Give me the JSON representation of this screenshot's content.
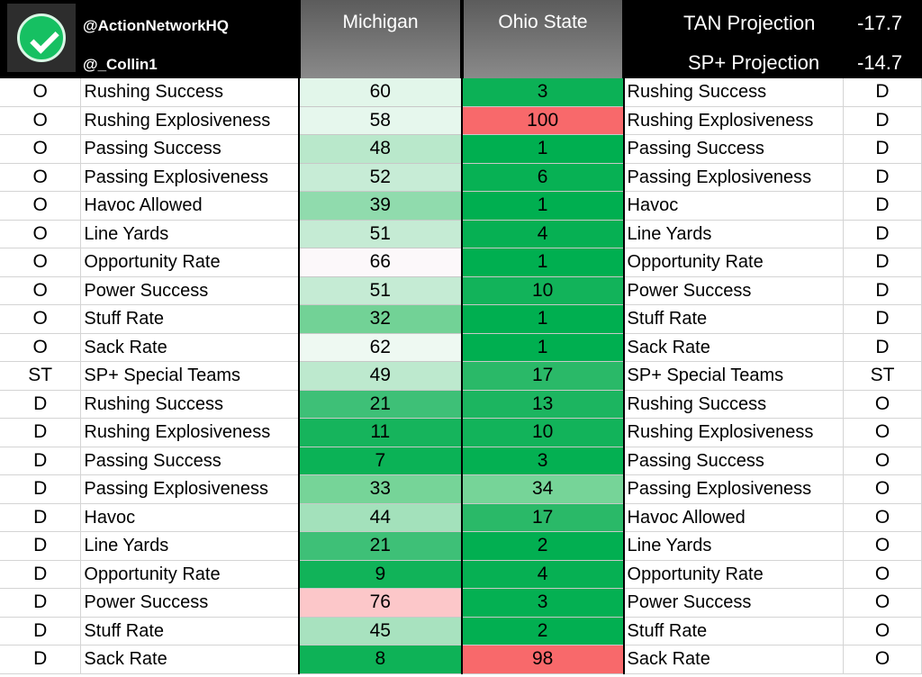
{
  "header": {
    "handle_primary": "@ActionNetworkHQ",
    "handle_secondary": "@_Collin1",
    "logo_icon": "checkmark-circle-icon",
    "team_left": "Michigan",
    "team_right": "Ohio State",
    "tan_label": "TAN Projection",
    "tan_value": "-17.7",
    "sp_label": "SP+ Projection",
    "sp_value": "-14.7"
  },
  "colors": {
    "header_bg": "#000000",
    "team_header_bg": "#7a7a7a",
    "heat_good_dark": "#00b050",
    "heat_neutral": "#ffffff",
    "heat_bad": "#f8696b"
  },
  "rows": [
    {
      "mside": "O",
      "mlabel": "Rushing Success",
      "mich": "60",
      "osu": "3",
      "olabel": "Rushing Success",
      "oside": "D",
      "mbg": "#e2f6ea",
      "obg": "#0cb156"
    },
    {
      "mside": "O",
      "mlabel": "Rushing Explosiveness",
      "mich": "58",
      "osu": "100",
      "olabel": "Rushing Explosiveness",
      "oside": "D",
      "mbg": "#e6f7ed",
      "obg": "#f8696b"
    },
    {
      "mside": "O",
      "mlabel": "Passing Success",
      "mich": "48",
      "osu": "1",
      "olabel": "Passing Success",
      "oside": "D",
      "mbg": "#b9e8cb",
      "obg": "#00af50"
    },
    {
      "mside": "O",
      "mlabel": "Passing Explosiveness",
      "mich": "52",
      "osu": "6",
      "olabel": "Passing Explosiveness",
      "oside": "D",
      "mbg": "#c7ecd6",
      "obg": "#07b154"
    },
    {
      "mside": "O",
      "mlabel": "Havoc Allowed",
      "mich": "39",
      "osu": "1",
      "olabel": "Havoc",
      "oside": "D",
      "mbg": "#90dbad",
      "obg": "#00af50"
    },
    {
      "mside": "O",
      "mlabel": "Line Yards",
      "mich": "51",
      "osu": "4",
      "olabel": "Line Yards",
      "oside": "D",
      "mbg": "#c5ebd4",
      "obg": "#06b053"
    },
    {
      "mside": "O",
      "mlabel": "Opportunity Rate",
      "mich": "66",
      "osu": "1",
      "olabel": "Opportunity Rate",
      "oside": "D",
      "mbg": "#fcf8fa",
      "obg": "#00af50"
    },
    {
      "mside": "O",
      "mlabel": "Power Success",
      "mich": "51",
      "osu": "10",
      "olabel": "Power Success",
      "oside": "D",
      "mbg": "#c5ebd4",
      "obg": "#12b35a"
    },
    {
      "mside": "O",
      "mlabel": "Stuff Rate",
      "mich": "32",
      "osu": "1",
      "olabel": "Stuff Rate",
      "oside": "D",
      "mbg": "#72d296",
      "obg": "#00af50"
    },
    {
      "mside": "O",
      "mlabel": "Sack Rate",
      "mich": "62",
      "osu": "1",
      "olabel": "Sack Rate",
      "oside": "D",
      "mbg": "#eef9f2",
      "obg": "#00af50"
    },
    {
      "mside": "ST",
      "mlabel": "SP+ Special Teams",
      "mich": "49",
      "osu": "17",
      "olabel": "SP+ Special Teams",
      "oside": "ST",
      "mbg": "#bde9ce",
      "obg": "#2ab968"
    },
    {
      "mside": "D",
      "mlabel": "Rushing Success",
      "mich": "21",
      "osu": "13",
      "olabel": "Rushing Success",
      "oside": "O",
      "mbg": "#3ec077",
      "obg": "#1cb560"
    },
    {
      "mside": "D",
      "mlabel": "Rushing Explosiveness",
      "mich": "11",
      "osu": "10",
      "olabel": "Rushing Explosiveness",
      "oside": "O",
      "mbg": "#16b45c",
      "obg": "#12b35a"
    },
    {
      "mside": "D",
      "mlabel": "Passing Success",
      "mich": "7",
      "osu": "3",
      "olabel": "Passing Success",
      "oside": "O",
      "mbg": "#0bb256",
      "obg": "#04b052"
    },
    {
      "mside": "D",
      "mlabel": "Passing Explosiveness",
      "mich": "33",
      "osu": "34",
      "olabel": "Passing Explosiveness",
      "oside": "O",
      "mbg": "#76d498",
      "obg": "#76d498"
    },
    {
      "mside": "D",
      "mlabel": "Havoc",
      "mich": "44",
      "osu": "17",
      "olabel": "Havoc Allowed",
      "oside": "O",
      "mbg": "#a3e1bb",
      "obg": "#2ab968"
    },
    {
      "mside": "D",
      "mlabel": "Line Yards",
      "mich": "21",
      "osu": "2",
      "olabel": "Line Yards",
      "oside": "O",
      "mbg": "#3ec077",
      "obg": "#02af51"
    },
    {
      "mside": "D",
      "mlabel": "Opportunity Rate",
      "mich": "9",
      "osu": "4",
      "olabel": "Opportunity Rate",
      "oside": "O",
      "mbg": "#11b359",
      "obg": "#06b053"
    },
    {
      "mside": "D",
      "mlabel": "Power Success",
      "mich": "76",
      "osu": "3",
      "olabel": "Power Success",
      "oside": "O",
      "mbg": "#fcc7c9",
      "obg": "#04b052"
    },
    {
      "mside": "D",
      "mlabel": "Stuff Rate",
      "mich": "45",
      "osu": "2",
      "olabel": "Stuff Rate",
      "oside": "O",
      "mbg": "#a8e2bf",
      "obg": "#02af51"
    },
    {
      "mside": "D",
      "mlabel": "Sack Rate",
      "mich": "8",
      "osu": "98",
      "olabel": "Sack Rate",
      "oside": "O",
      "mbg": "#0eb257",
      "obg": "#f8696b"
    }
  ]
}
